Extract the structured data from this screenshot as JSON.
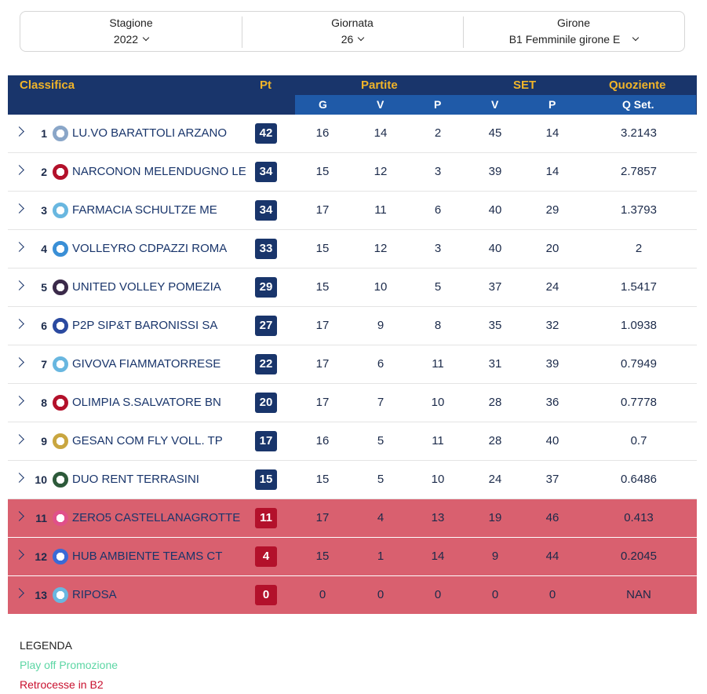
{
  "filters": {
    "stagione": {
      "label": "Stagione",
      "value": "2022"
    },
    "giornata": {
      "label": "Giornata",
      "value": "26"
    },
    "girone": {
      "label": "Girone",
      "value": "B1 Femminile girone E"
    }
  },
  "header": {
    "classifica": "Classifica",
    "pt": "Pt",
    "partite": "Partite",
    "set": "SET",
    "quoziente": "Quoziente",
    "g": "G",
    "v": "V",
    "p": "P",
    "set_v": "V",
    "set_p": "P",
    "qset": "Q Set."
  },
  "rows": [
    {
      "pos": "1",
      "team": "LU.VO BARATTOLI ARZANO",
      "pt": "42",
      "g": "16",
      "v": "14",
      "p": "2",
      "sv": "45",
      "sp": "14",
      "q": "3.2143",
      "logo": "barattoli-logo",
      "color": "#8aa6c8"
    },
    {
      "pos": "2",
      "team": "NARCONON MELENDUGNO LE",
      "pt": "34",
      "g": "15",
      "v": "12",
      "p": "3",
      "sv": "39",
      "sp": "14",
      "q": "2.7857",
      "logo": "melendugno-shield-logo",
      "color": "#b3112b"
    },
    {
      "pos": "3",
      "team": "FARMACIA SCHULTZE ME",
      "pt": "34",
      "g": "17",
      "v": "11",
      "p": "6",
      "sv": "40",
      "sp": "29",
      "q": "1.3793",
      "logo": "volleyball-player-logo",
      "color": "#69b7e0"
    },
    {
      "pos": "4",
      "team": "VOLLEYRO CDPAZZI ROMA",
      "pt": "33",
      "g": "15",
      "v": "12",
      "p": "3",
      "sv": "40",
      "sp": "20",
      "q": "2",
      "logo": "volleyro-logo",
      "color": "#3a8fd6"
    },
    {
      "pos": "5",
      "team": "UNITED VOLLEY POMEZIA",
      "pt": "29",
      "g": "15",
      "v": "10",
      "p": "5",
      "sv": "37",
      "sp": "24",
      "q": "1.5417",
      "logo": "united-volley-logo",
      "color": "#3b2a4a"
    },
    {
      "pos": "6",
      "team": "P2P SIP&T BARONISSI SA",
      "pt": "27",
      "g": "17",
      "v": "9",
      "p": "8",
      "sv": "35",
      "sp": "32",
      "q": "1.0938",
      "logo": "baronissi-logo",
      "color": "#2b4aa0"
    },
    {
      "pos": "7",
      "team": "GIVOVA FIAMMATORRESE",
      "pt": "22",
      "g": "17",
      "v": "6",
      "p": "11",
      "sv": "31",
      "sp": "39",
      "q": "0.7949",
      "logo": "volleyball-player-logo",
      "color": "#69b7e0"
    },
    {
      "pos": "8",
      "team": "OLIMPIA S.SALVATORE BN",
      "pt": "20",
      "g": "17",
      "v": "7",
      "p": "10",
      "sv": "28",
      "sp": "36",
      "q": "0.7778",
      "logo": "olimpia-v-logo",
      "color": "#b3112b"
    },
    {
      "pos": "9",
      "team": "GESAN COM FLY VOLL. TP",
      "pt": "17",
      "g": "16",
      "v": "5",
      "p": "11",
      "sv": "28",
      "sp": "40",
      "q": "0.7",
      "logo": "fly-volley-logo",
      "color": "#c9a640"
    },
    {
      "pos": "10",
      "team": "DUO RENT TERRASINI",
      "pt": "15",
      "g": "15",
      "v": "5",
      "p": "10",
      "sv": "24",
      "sp": "37",
      "q": "0.6486",
      "logo": "terrasini-shield-logo",
      "color": "#2d5a3a"
    },
    {
      "pos": "11",
      "team": "ZERO5 CASTELLANAGROTTE",
      "pt": "11",
      "g": "17",
      "v": "4",
      "p": "13",
      "sv": "19",
      "sp": "46",
      "q": "0.413",
      "logo": "zero5-logo",
      "color": "#e0508a",
      "relegated": true
    },
    {
      "pos": "12",
      "team": "HUB AMBIENTE TEAMS CT",
      "pt": "4",
      "g": "15",
      "v": "1",
      "p": "14",
      "sv": "9",
      "sp": "44",
      "q": "0.2045",
      "logo": "hub-ambiente-logo",
      "color": "#3a6ad6",
      "relegated": true
    },
    {
      "pos": "13",
      "team": "RIPOSA",
      "pt": "0",
      "g": "0",
      "v": "0",
      "p": "0",
      "sv": "0",
      "sp": "0",
      "q": "NAN",
      "logo": "volleyball-player-logo",
      "color": "#69b7e0",
      "relegated": true
    }
  ],
  "legend": {
    "title": "LEGENDA",
    "promo": "Play off Promozione",
    "rel": "Retrocesse in B2",
    "promo_color": "#5cd6a4",
    "rel_color": "#c8102e"
  }
}
